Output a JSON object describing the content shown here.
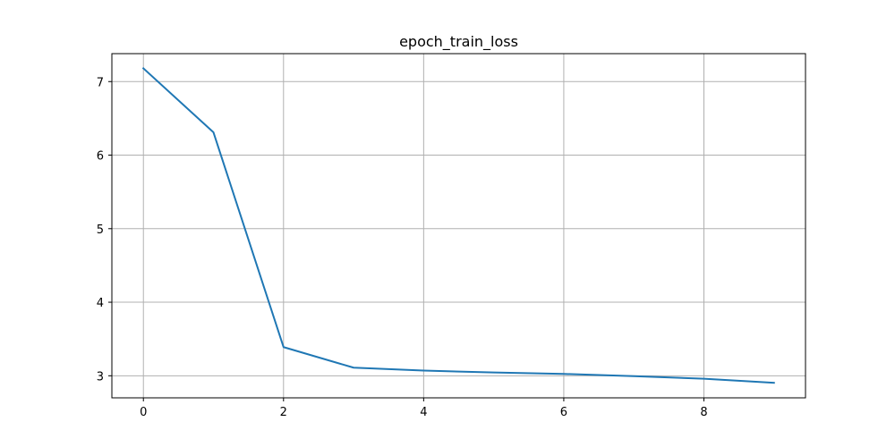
{
  "chart_data": {
    "type": "line",
    "title": "epoch_train_loss",
    "xlabel": "",
    "ylabel": "",
    "x": [
      0,
      1,
      2,
      3,
      4,
      5,
      6,
      7,
      8,
      9
    ],
    "series": [
      {
        "name": "epoch_train_loss",
        "color": "#1f77b4",
        "values": [
          7.18,
          6.31,
          3.39,
          3.11,
          3.07,
          3.045,
          3.025,
          2.995,
          2.96,
          2.905
        ]
      }
    ],
    "xlim": [
      -0.45,
      9.45
    ],
    "ylim": [
      2.7,
      7.38
    ],
    "xticks": [
      0,
      2,
      4,
      6,
      8
    ],
    "xtick_labels": [
      "0",
      "2",
      "4",
      "6",
      "8"
    ],
    "yticks": [
      3,
      4,
      5,
      6,
      7
    ],
    "ytick_labels": [
      "3",
      "4",
      "5",
      "6",
      "7"
    ],
    "grid": true,
    "grid_color": "#b0b0b0"
  }
}
